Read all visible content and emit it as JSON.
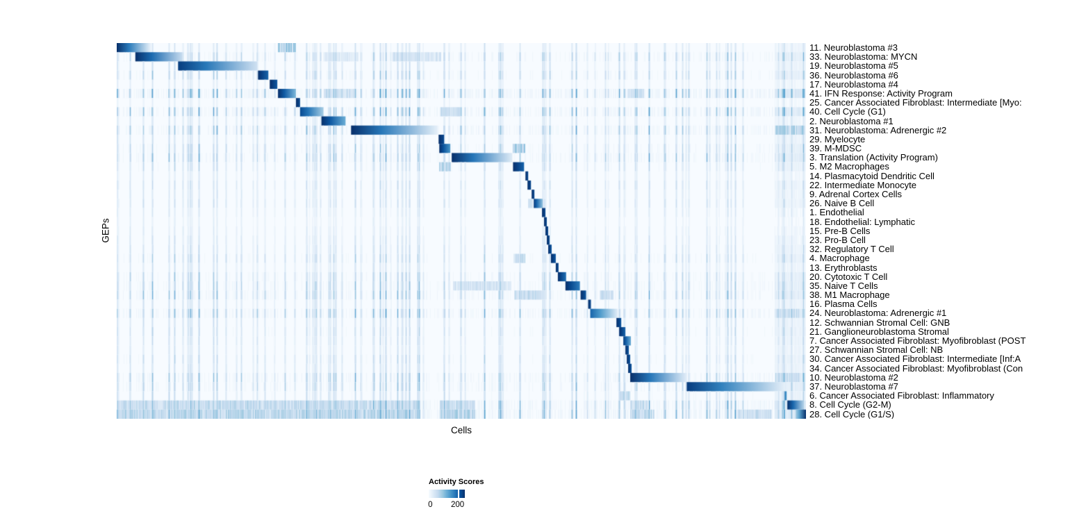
{
  "chart_data": {
    "type": "heatmap",
    "title": "",
    "xlabel": "Cells",
    "ylabel": "GEPs",
    "grid": false,
    "colormap": {
      "name": "white-to-dark-blue",
      "min_color": "#f7fbff",
      "max_color": "#08306b"
    },
    "legend": {
      "title": "Activity Scores",
      "tick_labels": [
        "0",
        "200"
      ],
      "tick_values": [
        0,
        200
      ],
      "tick_positions": [
        0.02,
        0.8
      ],
      "position": "bottom"
    },
    "value_range_note": "activity scores from 0 (white) to >200 (dark blue); 200 tick sits at ~80% of colorbar",
    "rows": [
      {
        "label": "11. Neuroblastoma #3",
        "noise": 0.25,
        "block": {
          "x0": 0.0,
          "x1": 0.05,
          "v0": 1.0,
          "v1": 0.05
        },
        "bands": [
          {
            "x0": 0.233,
            "x1": 0.26,
            "v": 0.45
          }
        ]
      },
      {
        "label": "33. Neuroblastoma: MYCN",
        "noise": 0.5,
        "block": {
          "x0": 0.027,
          "x1": 0.095,
          "v0": 1.0,
          "v1": 0.25
        },
        "bands": [
          {
            "x0": 0.3,
            "x1": 0.35,
            "v": 0.18
          },
          {
            "x0": 0.4,
            "x1": 0.47,
            "v": 0.22
          }
        ]
      },
      {
        "label": "19. Neuroblastoma #5",
        "noise": 0.3,
        "block": {
          "x0": 0.089,
          "x1": 0.204,
          "v0": 0.95,
          "v1": 0.2
        },
        "bands": []
      },
      {
        "label": "36. Neuroblastoma #6",
        "noise": 0.45,
        "block": {
          "x0": 0.205,
          "x1": 0.22,
          "v0": 1.0,
          "v1": 0.8
        },
        "bands": []
      },
      {
        "label": "17. Neuroblastoma #4",
        "noise": 0.2,
        "block": {
          "x0": 0.222,
          "x1": 0.233,
          "v0": 1.0,
          "v1": 0.85
        },
        "bands": []
      },
      {
        "label": "41. IFN Response: Activity Program",
        "noise": 0.75,
        "block": {
          "x0": 0.234,
          "x1": 0.26,
          "v0": 1.0,
          "v1": 0.45
        },
        "bands": [
          {
            "x0": 0.3,
            "x1": 0.345,
            "v": 0.3
          },
          {
            "x0": 0.74,
            "x1": 0.765,
            "v": 0.3
          }
        ]
      },
      {
        "label": "25. Cancer Associated Fibroblast: Intermediate [Myo:",
        "noise": 0.15,
        "block": {
          "x0": 0.26,
          "x1": 0.266,
          "v0": 1.0,
          "v1": 0.9
        },
        "bands": []
      },
      {
        "label": "40. Cell Cycle (G1)",
        "noise": 0.65,
        "block": {
          "x0": 0.266,
          "x1": 0.3,
          "v0": 0.9,
          "v1": 0.35
        },
        "bands": [
          {
            "x0": 0.468,
            "x1": 0.5,
            "v": 0.3
          }
        ]
      },
      {
        "label": "2. Neuroblastoma #1",
        "noise": 0.25,
        "block": {
          "x0": 0.297,
          "x1": 0.332,
          "v0": 1.0,
          "v1": 0.5
        },
        "bands": []
      },
      {
        "label": "31. Neuroblastoma: Adrenergic #2",
        "noise": 0.6,
        "block": {
          "x0": 0.34,
          "x1": 0.466,
          "v0": 1.0,
          "v1": 0.08
        },
        "bands": [
          {
            "x0": 0.955,
            "x1": 0.995,
            "v": 0.4
          }
        ]
      },
      {
        "label": "29. Myelocyte",
        "noise": 0.3,
        "block": {
          "x0": 0.467,
          "x1": 0.475,
          "v0": 1.0,
          "v1": 0.9
        },
        "bands": []
      },
      {
        "label": "39. M-MDSC",
        "noise": 0.45,
        "block": {
          "x0": 0.468,
          "x1": 0.484,
          "v0": 1.0,
          "v1": 0.6
        },
        "bands": [
          {
            "x0": 0.574,
            "x1": 0.592,
            "v": 0.45
          }
        ]
      },
      {
        "label": "3. Translation (Activity Program)",
        "noise": 0.55,
        "block": {
          "x0": 0.486,
          "x1": 0.574,
          "v0": 1.0,
          "v1": 0.12
        },
        "bands": []
      },
      {
        "label": "5. M2 Macrophages",
        "noise": 0.35,
        "block": {
          "x0": 0.575,
          "x1": 0.591,
          "v0": 1.0,
          "v1": 0.8
        },
        "bands": [
          {
            "x0": 0.467,
            "x1": 0.484,
            "v": 0.4
          }
        ]
      },
      {
        "label": "14. Plasmacytoid Dendritic Cell",
        "noise": 0.2,
        "block": {
          "x0": 0.593,
          "x1": 0.597,
          "v0": 1.0,
          "v1": 0.9
        },
        "bands": []
      },
      {
        "label": "22. Intermediate Monocyte",
        "noise": 0.3,
        "block": {
          "x0": 0.596,
          "x1": 0.601,
          "v0": 1.0,
          "v1": 0.9
        },
        "bands": []
      },
      {
        "label": "9. Adrenal Cortex Cells",
        "noise": 0.25,
        "block": {
          "x0": 0.602,
          "x1": 0.606,
          "v0": 1.0,
          "v1": 0.9
        },
        "bands": []
      },
      {
        "label": "26. Naive B Cell",
        "noise": 0.3,
        "block": {
          "x0": 0.605,
          "x1": 0.618,
          "v0": 0.95,
          "v1": 0.4
        },
        "bands": [
          {
            "x0": 0.596,
            "x1": 0.603,
            "v": 0.3
          }
        ]
      },
      {
        "label": "1. Endothelial",
        "noise": 0.2,
        "block": {
          "x0": 0.617,
          "x1": 0.622,
          "v0": 1.0,
          "v1": 0.9
        },
        "bands": []
      },
      {
        "label": "18. Endothelial: Lymphatic",
        "noise": 0.15,
        "block": {
          "x0": 0.62,
          "x1": 0.624,
          "v0": 1.0,
          "v1": 0.9
        },
        "bands": []
      },
      {
        "label": "15. Pre-B Cells",
        "noise": 0.2,
        "block": {
          "x0": 0.622,
          "x1": 0.626,
          "v0": 1.0,
          "v1": 0.9
        },
        "bands": []
      },
      {
        "label": "23. Pro-B Cell",
        "noise": 0.25,
        "block": {
          "x0": 0.624,
          "x1": 0.628,
          "v0": 1.0,
          "v1": 0.9
        },
        "bands": []
      },
      {
        "label": "32. Regulatory T Cell",
        "noise": 0.3,
        "block": {
          "x0": 0.626,
          "x1": 0.631,
          "v0": 1.0,
          "v1": 0.85
        },
        "bands": []
      },
      {
        "label": "4. Macrophage",
        "noise": 0.4,
        "block": {
          "x0": 0.63,
          "x1": 0.637,
          "v0": 1.0,
          "v1": 0.85
        },
        "bands": [
          {
            "x0": 0.575,
            "x1": 0.592,
            "v": 0.35
          }
        ]
      },
      {
        "label": "13. Erythroblasts",
        "noise": 0.25,
        "block": {
          "x0": 0.637,
          "x1": 0.641,
          "v0": 1.0,
          "v1": 0.9
        },
        "bands": []
      },
      {
        "label": "20. Cytotoxic T Cell",
        "noise": 0.45,
        "block": {
          "x0": 0.64,
          "x1": 0.652,
          "v0": 1.0,
          "v1": 0.75
        },
        "bands": []
      },
      {
        "label": "35. Naive T Cells",
        "noise": 0.5,
        "block": {
          "x0": 0.651,
          "x1": 0.672,
          "v0": 1.0,
          "v1": 0.7
        },
        "bands": [
          {
            "x0": 0.487,
            "x1": 0.572,
            "v": 0.25
          }
        ]
      },
      {
        "label": "38. M1 Macrophage",
        "noise": 0.55,
        "block": {
          "x0": 0.673,
          "x1": 0.681,
          "v0": 1.0,
          "v1": 0.85
        },
        "bands": [
          {
            "x0": 0.576,
            "x1": 0.616,
            "v": 0.32
          },
          {
            "x0": 0.7,
            "x1": 0.72,
            "v": 0.3
          }
        ]
      },
      {
        "label": "16. Plasma Cells",
        "noise": 0.3,
        "block": {
          "x0": 0.684,
          "x1": 0.688,
          "v0": 1.0,
          "v1": 0.9
        },
        "bands": []
      },
      {
        "label": "24. Neuroblastoma: Adrenergic #1",
        "noise": 0.6,
        "block": {
          "x0": 0.687,
          "x1": 0.727,
          "v0": 0.8,
          "v1": 0.1
        },
        "bands": [
          {
            "x0": 0.955,
            "x1": 0.99,
            "v": 0.3
          }
        ]
      },
      {
        "label": "12. Schwannian Stromal Cell: GNB",
        "noise": 0.3,
        "block": {
          "x0": 0.725,
          "x1": 0.732,
          "v0": 1.0,
          "v1": 0.85
        },
        "bands": []
      },
      {
        "label": "21. Ganglioneuroblastoma Stromal",
        "noise": 0.35,
        "block": {
          "x0": 0.729,
          "x1": 0.738,
          "v0": 1.0,
          "v1": 0.8
        },
        "bands": []
      },
      {
        "label": "7. Cancer Associated Fibroblast: Myofibroblast (POST",
        "noise": 0.3,
        "block": {
          "x0": 0.735,
          "x1": 0.746,
          "v0": 0.95,
          "v1": 0.5
        },
        "bands": []
      },
      {
        "label": "27. Schwannian Stromal Cell: NB",
        "noise": 0.25,
        "block": {
          "x0": 0.738,
          "x1": 0.743,
          "v0": 1.0,
          "v1": 0.85
        },
        "bands": []
      },
      {
        "label": "30. Cancer Associated Fibroblast: Intermediate [Inf:A",
        "noise": 0.35,
        "block": {
          "x0": 0.74,
          "x1": 0.745,
          "v0": 1.0,
          "v1": 0.85
        },
        "bands": []
      },
      {
        "label": "34. Cancer Associated Fibroblast: Myofibroblast (Con",
        "noise": 0.3,
        "block": {
          "x0": 0.742,
          "x1": 0.747,
          "v0": 1.0,
          "v1": 0.85
        },
        "bands": []
      },
      {
        "label": "10. Neuroblastoma #2",
        "noise": 0.55,
        "block": {
          "x0": 0.745,
          "x1": 0.827,
          "v0": 1.0,
          "v1": 0.1
        },
        "bands": [
          {
            "x0": 0.955,
            "x1": 0.99,
            "v": 0.32
          }
        ]
      },
      {
        "label": "37. Neuroblastoma #7",
        "noise": 0.5,
        "block": {
          "x0": 0.827,
          "x1": 0.97,
          "v0": 0.95,
          "v1": 0.08
        },
        "bands": []
      },
      {
        "label": "6. Cancer Associated Fibroblast: Inflammatory",
        "noise": 0.35,
        "block": {
          "x0": 0.969,
          "x1": 0.972,
          "v0": 0.7,
          "v1": 0.6
        },
        "bands": [
          {
            "x0": 0.728,
            "x1": 0.744,
            "v": 0.38
          }
        ]
      },
      {
        "label": "8. Cell Cycle (G2-M)",
        "noise": 0.65,
        "block": {
          "x0": 0.973,
          "x1": 0.997,
          "v0": 1.0,
          "v1": 0.3
        },
        "bands": [
          {
            "x0": 0.0,
            "x1": 0.44,
            "v": 0.33
          },
          {
            "x0": 0.468,
            "x1": 0.52,
            "v": 0.35
          },
          {
            "x0": 0.744,
            "x1": 0.77,
            "v": 0.3
          }
        ]
      },
      {
        "label": "28. Cell Cycle (G1/S)",
        "noise": 0.7,
        "block": {
          "x0": 0.985,
          "x1": 1.0,
          "v0": 0.35,
          "v1": 1.0
        },
        "bands": [
          {
            "x0": 0.0,
            "x1": 0.44,
            "v": 0.38
          },
          {
            "x0": 0.468,
            "x1": 0.52,
            "v": 0.4
          },
          {
            "x0": 0.744,
            "x1": 0.78,
            "v": 0.35
          },
          {
            "x0": 0.9,
            "x1": 0.95,
            "v": 0.3
          }
        ]
      }
    ]
  }
}
